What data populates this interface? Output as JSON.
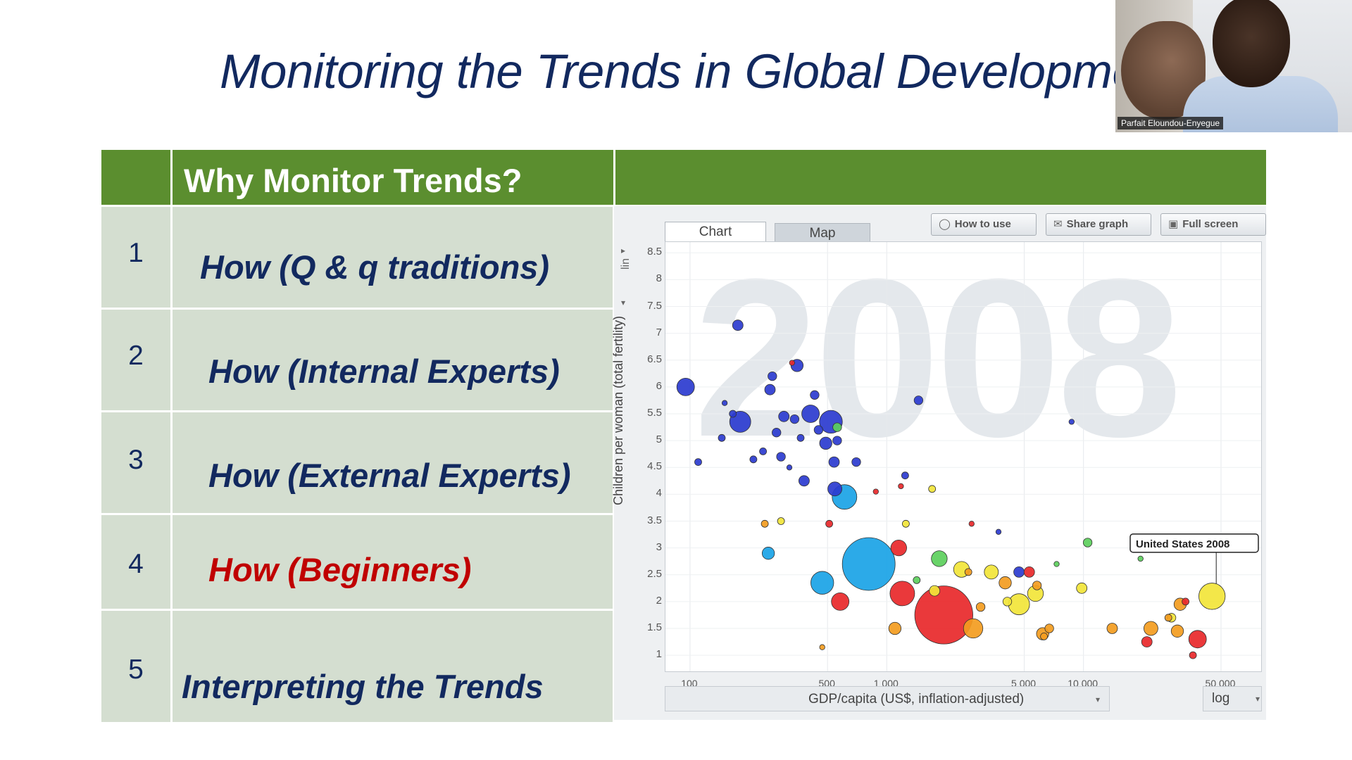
{
  "slide": {
    "title": "Monitoring the Trends in Global Development"
  },
  "webcam": {
    "participant_name": "Parfait Eloundou-Enyegue"
  },
  "table": {
    "header": "Why Monitor Trends?",
    "rows": [
      {
        "num": "1",
        "text": "How (Q & q traditions)",
        "color": "#12295f"
      },
      {
        "num": "2",
        "text": "How (Internal Experts)",
        "color": "#12295f"
      },
      {
        "num": "3",
        "text": "How (External Experts)",
        "color": "#12295f"
      },
      {
        "num": "4",
        "text": "How (Beginners)",
        "color": "#c00000"
      },
      {
        "num": "5",
        "text": "Interpreting the Trends",
        "color": "#12295f"
      }
    ]
  },
  "gapminder": {
    "tabs": [
      "Chart",
      "Map"
    ],
    "active_tab": "Chart",
    "buttons": {
      "how_to_use": "How to use",
      "share_graph": "Share graph",
      "full_screen": "Full screen"
    },
    "year": "2008",
    "y_scale": "lin",
    "x_scale": "log",
    "y_axis_label": "Children per woman (total fertility)",
    "x_axis_label": "GDP/capita (US$, inflation-adjusted)",
    "tooltip": "United States 2008",
    "colors": {
      "africa": "#2b3bcf",
      "south_asia": "#1aa3e6",
      "east_asia": "#e8282a",
      "americas": "#f2e53a",
      "europe": "#f39c1f",
      "middle_east": "#5ccf5c"
    }
  },
  "chart_data": {
    "type": "scatter",
    "title": "",
    "xlabel": "GDP/capita (US$, inflation-adjusted)",
    "ylabel": "Children per woman (total fertility)",
    "x_scale": "log",
    "xlim": [
      75,
      80000
    ],
    "ylim": [
      0.7,
      8.7
    ],
    "x_ticks": [
      100,
      500,
      1000,
      5000,
      10000,
      50000
    ],
    "x_tick_labels": [
      "100",
      "500",
      "1 000",
      "5 000",
      "10 000",
      "50 000"
    ],
    "y_ticks": [
      1,
      1.5,
      2,
      2.5,
      3,
      3.5,
      4,
      4.5,
      5,
      5.5,
      6,
      6.5,
      7,
      7.5,
      8,
      8.5
    ],
    "y_tick_labels": [
      "1",
      "1.5",
      "2",
      "2.5",
      "3",
      "3.5",
      "4",
      "4.5",
      "5",
      "5.5",
      "6",
      "6.5",
      "7",
      "7.5",
      "8",
      "8.5"
    ],
    "points": [
      {
        "x": 95,
        "y": 6.0,
        "s": 10,
        "c": "#2b3bcf"
      },
      {
        "x": 175,
        "y": 7.15,
        "s": 6,
        "c": "#2b3bcf"
      },
      {
        "x": 110,
        "y": 4.6,
        "s": 4,
        "c": "#2b3bcf"
      },
      {
        "x": 145,
        "y": 5.05,
        "s": 4,
        "c": "#2b3bcf"
      },
      {
        "x": 150,
        "y": 5.7,
        "s": 3,
        "c": "#2b3bcf"
      },
      {
        "x": 165,
        "y": 5.5,
        "s": 4,
        "c": "#2b3bcf"
      },
      {
        "x": 180,
        "y": 5.35,
        "s": 12,
        "c": "#2b3bcf"
      },
      {
        "x": 210,
        "y": 4.65,
        "s": 4,
        "c": "#2b3bcf"
      },
      {
        "x": 235,
        "y": 4.8,
        "s": 4,
        "c": "#2b3bcf"
      },
      {
        "x": 255,
        "y": 5.95,
        "s": 6,
        "c": "#2b3bcf"
      },
      {
        "x": 262,
        "y": 6.2,
        "s": 5,
        "c": "#2b3bcf"
      },
      {
        "x": 275,
        "y": 5.15,
        "s": 5,
        "c": "#2b3bcf"
      },
      {
        "x": 300,
        "y": 5.45,
        "s": 6,
        "c": "#2b3bcf"
      },
      {
        "x": 290,
        "y": 4.7,
        "s": 5,
        "c": "#2b3bcf"
      },
      {
        "x": 320,
        "y": 4.5,
        "s": 3,
        "c": "#2b3bcf"
      },
      {
        "x": 340,
        "y": 5.4,
        "s": 5,
        "c": "#2b3bcf"
      },
      {
        "x": 350,
        "y": 6.4,
        "s": 7,
        "c": "#2b3bcf"
      },
      {
        "x": 365,
        "y": 5.05,
        "s": 4,
        "c": "#2b3bcf"
      },
      {
        "x": 380,
        "y": 4.25,
        "s": 6,
        "c": "#2b3bcf"
      },
      {
        "x": 410,
        "y": 5.5,
        "s": 10,
        "c": "#2b3bcf"
      },
      {
        "x": 430,
        "y": 5.85,
        "s": 5,
        "c": "#2b3bcf"
      },
      {
        "x": 450,
        "y": 5.2,
        "s": 5,
        "c": "#2b3bcf"
      },
      {
        "x": 490,
        "y": 4.95,
        "s": 7,
        "c": "#2b3bcf"
      },
      {
        "x": 520,
        "y": 5.35,
        "s": 13,
        "c": "#2b3bcf"
      },
      {
        "x": 540,
        "y": 4.6,
        "s": 6,
        "c": "#2b3bcf"
      },
      {
        "x": 560,
        "y": 5.0,
        "s": 5,
        "c": "#2b3bcf"
      },
      {
        "x": 545,
        "y": 4.1,
        "s": 8,
        "c": "#2b3bcf"
      },
      {
        "x": 700,
        "y": 4.6,
        "s": 5,
        "c": "#2b3bcf"
      },
      {
        "x": 1240,
        "y": 4.35,
        "s": 4,
        "c": "#2b3bcf"
      },
      {
        "x": 1450,
        "y": 5.75,
        "s": 5,
        "c": "#2b3bcf"
      },
      {
        "x": 4700,
        "y": 2.55,
        "s": 6,
        "c": "#2b3bcf"
      },
      {
        "x": 3700,
        "y": 3.3,
        "s": 3,
        "c": "#2b3bcf"
      },
      {
        "x": 8700,
        "y": 5.35,
        "s": 3,
        "c": "#2b3bcf"
      },
      {
        "x": 610,
        "y": 3.95,
        "s": 14,
        "c": "#1aa3e6"
      },
      {
        "x": 810,
        "y": 2.7,
        "s": 30,
        "c": "#1aa3e6"
      },
      {
        "x": 470,
        "y": 2.35,
        "s": 13,
        "c": "#1aa3e6"
      },
      {
        "x": 250,
        "y": 2.9,
        "s": 7,
        "c": "#1aa3e6"
      },
      {
        "x": 580,
        "y": 2.0,
        "s": 10,
        "c": "#e8282a"
      },
      {
        "x": 1200,
        "y": 2.15,
        "s": 14,
        "c": "#e8282a"
      },
      {
        "x": 1950,
        "y": 1.75,
        "s": 33,
        "c": "#e8282a"
      },
      {
        "x": 1150,
        "y": 3.0,
        "s": 9,
        "c": "#e8282a"
      },
      {
        "x": 880,
        "y": 4.05,
        "s": 3,
        "c": "#e8282a"
      },
      {
        "x": 510,
        "y": 3.45,
        "s": 4,
        "c": "#e8282a"
      },
      {
        "x": 330,
        "y": 6.45,
        "s": 3,
        "c": "#e8282a"
      },
      {
        "x": 5300,
        "y": 2.55,
        "s": 6,
        "c": "#e8282a"
      },
      {
        "x": 21000,
        "y": 1.25,
        "s": 6,
        "c": "#e8282a"
      },
      {
        "x": 38000,
        "y": 1.3,
        "s": 10,
        "c": "#e8282a"
      },
      {
        "x": 36000,
        "y": 1.0,
        "s": 4,
        "c": "#e8282a"
      },
      {
        "x": 33000,
        "y": 2.0,
        "s": 4,
        "c": "#e8282a"
      },
      {
        "x": 1180,
        "y": 4.15,
        "s": 3,
        "c": "#e8282a"
      },
      {
        "x": 2700,
        "y": 3.45,
        "s": 3,
        "c": "#e8282a"
      },
      {
        "x": 1100,
        "y": 1.5,
        "s": 7,
        "c": "#f39c1f"
      },
      {
        "x": 2750,
        "y": 1.5,
        "s": 11,
        "c": "#f39c1f"
      },
      {
        "x": 6200,
        "y": 1.4,
        "s": 7,
        "c": "#f39c1f"
      },
      {
        "x": 6700,
        "y": 1.5,
        "s": 5,
        "c": "#f39c1f"
      },
      {
        "x": 14000,
        "y": 1.5,
        "s": 6,
        "c": "#f39c1f"
      },
      {
        "x": 22000,
        "y": 1.5,
        "s": 8,
        "c": "#f39c1f"
      },
      {
        "x": 30000,
        "y": 1.45,
        "s": 7,
        "c": "#f39c1f"
      },
      {
        "x": 31000,
        "y": 1.95,
        "s": 7,
        "c": "#f39c1f"
      },
      {
        "x": 27000,
        "y": 1.7,
        "s": 4,
        "c": "#f39c1f"
      },
      {
        "x": 4000,
        "y": 2.35,
        "s": 7,
        "c": "#f39c1f"
      },
      {
        "x": 5800,
        "y": 2.3,
        "s": 5,
        "c": "#f39c1f"
      },
      {
        "x": 6300,
        "y": 1.35,
        "s": 4,
        "c": "#f39c1f"
      },
      {
        "x": 3000,
        "y": 1.9,
        "s": 5,
        "c": "#f39c1f"
      },
      {
        "x": 2600,
        "y": 2.55,
        "s": 4,
        "c": "#f39c1f"
      },
      {
        "x": 470,
        "y": 1.15,
        "s": 3,
        "c": "#f39c1f"
      },
      {
        "x": 240,
        "y": 3.45,
        "s": 4,
        "c": "#f39c1f"
      },
      {
        "x": 4700,
        "y": 1.95,
        "s": 12,
        "c": "#f2e53a"
      },
      {
        "x": 5700,
        "y": 2.15,
        "s": 9,
        "c": "#f2e53a"
      },
      {
        "x": 45000,
        "y": 2.1,
        "s": 15,
        "c": "#f2e53a"
      },
      {
        "x": 1750,
        "y": 2.2,
        "s": 6,
        "c": "#f2e53a"
      },
      {
        "x": 2400,
        "y": 2.6,
        "s": 9,
        "c": "#f2e53a"
      },
      {
        "x": 3400,
        "y": 2.55,
        "s": 8,
        "c": "#f2e53a"
      },
      {
        "x": 4100,
        "y": 2.0,
        "s": 5,
        "c": "#f2e53a"
      },
      {
        "x": 9800,
        "y": 2.25,
        "s": 6,
        "c": "#f2e53a"
      },
      {
        "x": 28000,
        "y": 1.7,
        "s": 5,
        "c": "#f2e53a"
      },
      {
        "x": 1250,
        "y": 3.45,
        "s": 4,
        "c": "#f2e53a"
      },
      {
        "x": 290,
        "y": 3.5,
        "s": 4,
        "c": "#f2e53a"
      },
      {
        "x": 1700,
        "y": 4.1,
        "s": 4,
        "c": "#f2e53a"
      },
      {
        "x": 1850,
        "y": 2.8,
        "s": 9,
        "c": "#5ccf5c"
      },
      {
        "x": 10500,
        "y": 3.1,
        "s": 5,
        "c": "#5ccf5c"
      },
      {
        "x": 19500,
        "y": 2.8,
        "s": 3,
        "c": "#5ccf5c"
      },
      {
        "x": 560,
        "y": 5.25,
        "s": 5,
        "c": "#5ccf5c"
      },
      {
        "x": 1420,
        "y": 2.4,
        "s": 4,
        "c": "#5ccf5c"
      },
      {
        "x": 7300,
        "y": 2.7,
        "s": 3,
        "c": "#5ccf5c"
      }
    ]
  }
}
